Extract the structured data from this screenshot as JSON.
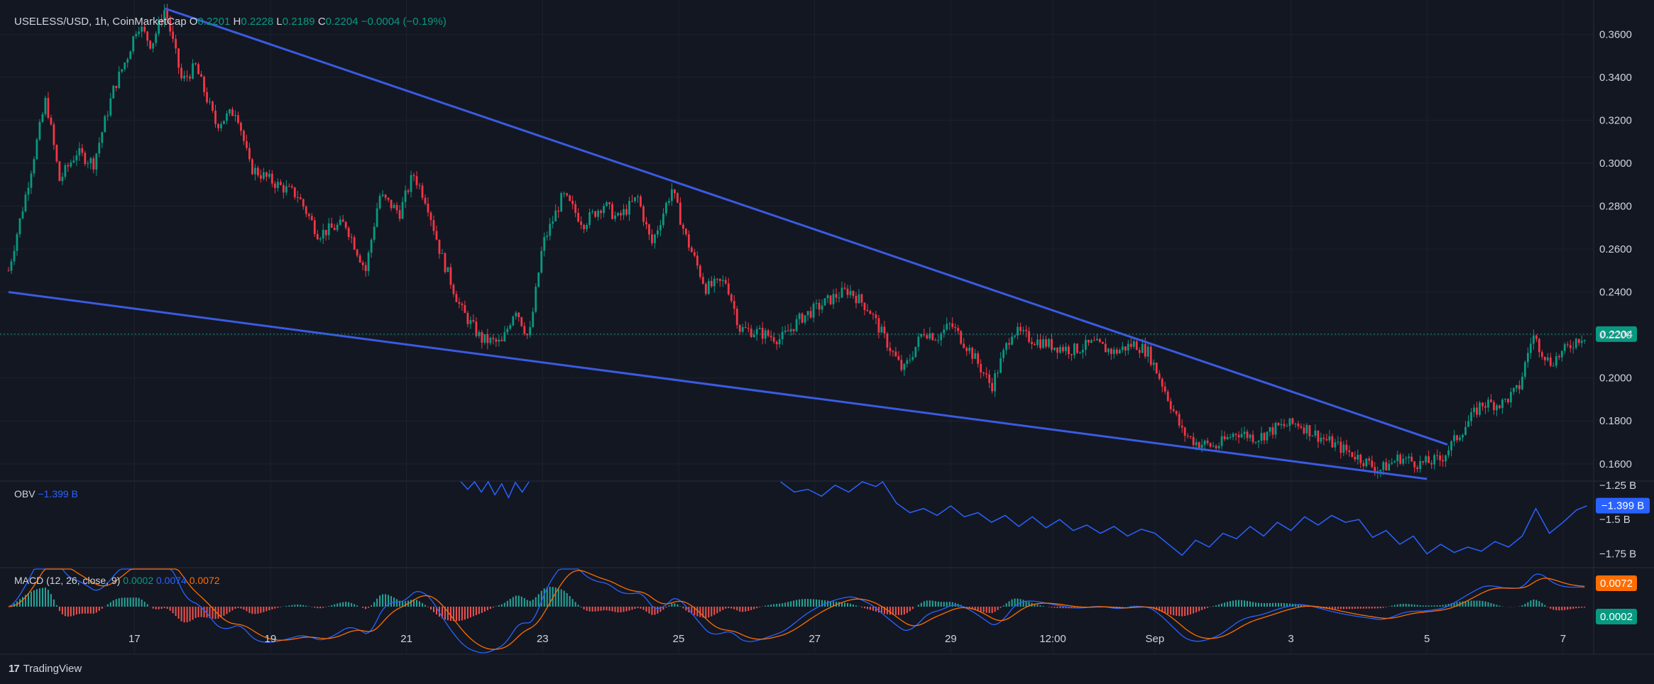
{
  "header": {
    "symbol": "USELESS/USD, 1h, CoinMarketCap",
    "o_label": "O",
    "o_value": "0.2201",
    "h_label": "H",
    "h_value": "0.2228",
    "l_label": "L",
    "l_value": "0.2189",
    "c_label": "C",
    "c_value": "0.2204",
    "change": "−0.0004 (−0.19%)"
  },
  "obv_label": {
    "name": "OBV",
    "value": "−1.399 B"
  },
  "macd_label": {
    "name": "MACD (12, 26, close, 9)",
    "hist": "0.0002",
    "macd": "0.0074",
    "signal": "0.0072"
  },
  "branding": {
    "logo_mark": "17",
    "logo_text": "TradingView"
  },
  "colors": {
    "up": "#089981",
    "down": "#f23645",
    "trendline": "#3a5be0",
    "obv": "#2962ff",
    "macd": "#2962ff",
    "signal": "#ff6d00",
    "bg": "#131722"
  },
  "chart_data": {
    "type": "candlestick",
    "title": "USELESS/USD, 1h, CoinMarketCap",
    "price_axis": {
      "ticks": [
        "0.3600",
        "0.3400",
        "0.3200",
        "0.3000",
        "0.2800",
        "0.2600",
        "0.2400",
        "0.2200",
        "0.2000",
        "0.1800",
        "0.1600"
      ],
      "ylim": [
        0.152,
        0.372
      ],
      "last_price_label": "0.2204"
    },
    "time_axis": {
      "ticks": [
        {
          "label": "17",
          "day": 17
        },
        {
          "label": "19",
          "day": 19
        },
        {
          "label": "21",
          "day": 21
        },
        {
          "label": "23",
          "day": 23
        },
        {
          "label": "25",
          "day": 25
        },
        {
          "label": "27",
          "day": 27
        },
        {
          "label": "29",
          "day": 29
        },
        {
          "label": "12:00",
          "day": 30.5
        },
        {
          "label": "Sep",
          "day": 32
        },
        {
          "label": "3",
          "day": 34
        },
        {
          "label": "5",
          "day": 36
        },
        {
          "label": "7",
          "day": 38
        }
      ],
      "xlim_days": [
        15.15,
        38.45
      ]
    },
    "price_path": [
      [
        15.15,
        0.25
      ],
      [
        15.4,
        0.285
      ],
      [
        15.7,
        0.33
      ],
      [
        15.9,
        0.292
      ],
      [
        16.15,
        0.305
      ],
      [
        16.4,
        0.3
      ],
      [
        16.7,
        0.335
      ],
      [
        16.9,
        0.35
      ],
      [
        17.05,
        0.365
      ],
      [
        17.25,
        0.355
      ],
      [
        17.45,
        0.372
      ],
      [
        17.7,
        0.338
      ],
      [
        17.9,
        0.345
      ],
      [
        18.2,
        0.318
      ],
      [
        18.5,
        0.325
      ],
      [
        18.7,
        0.298
      ],
      [
        19.1,
        0.29
      ],
      [
        19.4,
        0.285
      ],
      [
        19.7,
        0.267
      ],
      [
        20.1,
        0.272
      ],
      [
        20.4,
        0.25
      ],
      [
        20.6,
        0.285
      ],
      [
        20.9,
        0.277
      ],
      [
        21.1,
        0.295
      ],
      [
        21.3,
        0.282
      ],
      [
        21.5,
        0.258
      ],
      [
        21.8,
        0.232
      ],
      [
        22.1,
        0.218
      ],
      [
        22.4,
        0.216
      ],
      [
        22.6,
        0.233
      ],
      [
        22.8,
        0.218
      ],
      [
        23.0,
        0.262
      ],
      [
        23.3,
        0.285
      ],
      [
        23.6,
        0.272
      ],
      [
        23.9,
        0.281
      ],
      [
        24.1,
        0.274
      ],
      [
        24.4,
        0.284
      ],
      [
        24.6,
        0.262
      ],
      [
        24.9,
        0.288
      ],
      [
        25.1,
        0.266
      ],
      [
        25.4,
        0.242
      ],
      [
        25.7,
        0.245
      ],
      [
        25.9,
        0.223
      ],
      [
        26.2,
        0.221
      ],
      [
        26.5,
        0.218
      ],
      [
        26.8,
        0.228
      ],
      [
        27.0,
        0.232
      ],
      [
        27.3,
        0.238
      ],
      [
        27.5,
        0.241
      ],
      [
        27.8,
        0.232
      ],
      [
        28.0,
        0.22
      ],
      [
        28.3,
        0.203
      ],
      [
        28.6,
        0.222
      ],
      [
        28.8,
        0.219
      ],
      [
        29.0,
        0.225
      ],
      [
        29.3,
        0.212
      ],
      [
        29.6,
        0.196
      ],
      [
        29.9,
        0.222
      ],
      [
        30.2,
        0.218
      ],
      [
        30.5,
        0.215
      ],
      [
        30.8,
        0.213
      ],
      [
        31.1,
        0.216
      ],
      [
        31.4,
        0.212
      ],
      [
        31.7,
        0.216
      ],
      [
        31.9,
        0.212
      ],
      [
        32.1,
        0.198
      ],
      [
        32.4,
        0.175
      ],
      [
        32.6,
        0.17
      ],
      [
        32.9,
        0.168
      ],
      [
        33.2,
        0.175
      ],
      [
        33.5,
        0.172
      ],
      [
        33.8,
        0.177
      ],
      [
        34.1,
        0.179
      ],
      [
        34.4,
        0.173
      ],
      [
        34.7,
        0.168
      ],
      [
        35.0,
        0.163
      ],
      [
        35.3,
        0.157
      ],
      [
        35.6,
        0.163
      ],
      [
        35.9,
        0.16
      ],
      [
        36.2,
        0.162
      ],
      [
        36.5,
        0.175
      ],
      [
        36.8,
        0.188
      ],
      [
        37.1,
        0.188
      ],
      [
        37.35,
        0.195
      ],
      [
        37.55,
        0.22
      ],
      [
        37.8,
        0.207
      ],
      [
        38.0,
        0.212
      ],
      [
        38.2,
        0.218
      ],
      [
        38.35,
        0.2204
      ]
    ],
    "trendlines": [
      {
        "name": "upper",
        "points": [
          [
            17.45,
            0.372
          ],
          [
            36.3,
            0.169
          ]
        ]
      },
      {
        "name": "lower",
        "points": [
          [
            15.15,
            0.24
          ],
          [
            36.0,
            0.153
          ]
        ]
      }
    ],
    "last_price": 0.2204,
    "obv": {
      "name": "OBV",
      "ticks": [
        "−1.25 B",
        "−1.5 B",
        "−1.75 B"
      ],
      "ylim": [
        -1.85,
        -1.22
      ],
      "series": [
        [
          21.8,
          -1.2
        ],
        [
          21.9,
          -1.28
        ],
        [
          22.0,
          -1.2
        ],
        [
          22.1,
          -1.3
        ],
        [
          22.2,
          -1.22
        ],
        [
          22.3,
          -1.32
        ],
        [
          22.4,
          -1.24
        ],
        [
          22.5,
          -1.34
        ],
        [
          22.6,
          -1.23
        ],
        [
          22.7,
          -1.3
        ],
        [
          22.8,
          -1.2
        ],
        [
          26.5,
          -1.2
        ],
        [
          26.7,
          -1.3
        ],
        [
          26.9,
          -1.28
        ],
        [
          27.1,
          -1.33
        ],
        [
          27.3,
          -1.25
        ],
        [
          27.5,
          -1.3
        ],
        [
          27.7,
          -1.22
        ],
        [
          27.9,
          -1.26
        ],
        [
          28.0,
          -1.2
        ],
        [
          28.2,
          -1.38
        ],
        [
          28.4,
          -1.45
        ],
        [
          28.6,
          -1.42
        ],
        [
          28.8,
          -1.47
        ],
        [
          29.0,
          -1.4
        ],
        [
          29.2,
          -1.48
        ],
        [
          29.4,
          -1.45
        ],
        [
          29.6,
          -1.52
        ],
        [
          29.8,
          -1.47
        ],
        [
          30.0,
          -1.55
        ],
        [
          30.2,
          -1.48
        ],
        [
          30.4,
          -1.56
        ],
        [
          30.6,
          -1.5
        ],
        [
          30.8,
          -1.58
        ],
        [
          31.0,
          -1.54
        ],
        [
          31.2,
          -1.6
        ],
        [
          31.4,
          -1.55
        ],
        [
          31.6,
          -1.62
        ],
        [
          31.8,
          -1.57
        ],
        [
          32.0,
          -1.6
        ],
        [
          32.2,
          -1.68
        ],
        [
          32.4,
          -1.76
        ],
        [
          32.6,
          -1.65
        ],
        [
          32.8,
          -1.7
        ],
        [
          33.0,
          -1.6
        ],
        [
          33.2,
          -1.64
        ],
        [
          33.4,
          -1.55
        ],
        [
          33.6,
          -1.62
        ],
        [
          33.8,
          -1.52
        ],
        [
          34.0,
          -1.58
        ],
        [
          34.2,
          -1.48
        ],
        [
          34.4,
          -1.54
        ],
        [
          34.6,
          -1.47
        ],
        [
          34.8,
          -1.52
        ],
        [
          35.0,
          -1.5
        ],
        [
          35.2,
          -1.63
        ],
        [
          35.4,
          -1.58
        ],
        [
          35.6,
          -1.68
        ],
        [
          35.8,
          -1.62
        ],
        [
          36.0,
          -1.75
        ],
        [
          36.2,
          -1.68
        ],
        [
          36.4,
          -1.74
        ],
        [
          36.6,
          -1.7
        ],
        [
          36.8,
          -1.73
        ],
        [
          37.0,
          -1.66
        ],
        [
          37.2,
          -1.7
        ],
        [
          37.4,
          -1.62
        ],
        [
          37.6,
          -1.42
        ],
        [
          37.8,
          -1.6
        ],
        [
          38.0,
          -1.52
        ],
        [
          38.2,
          -1.43
        ],
        [
          38.35,
          -1.4
        ]
      ]
    },
    "macd": {
      "name": "MACD (12, 26, close, 9)",
      "values": {
        "histogram": 0.0002,
        "macd": 0.0074,
        "signal": 0.0072
      }
    }
  }
}
